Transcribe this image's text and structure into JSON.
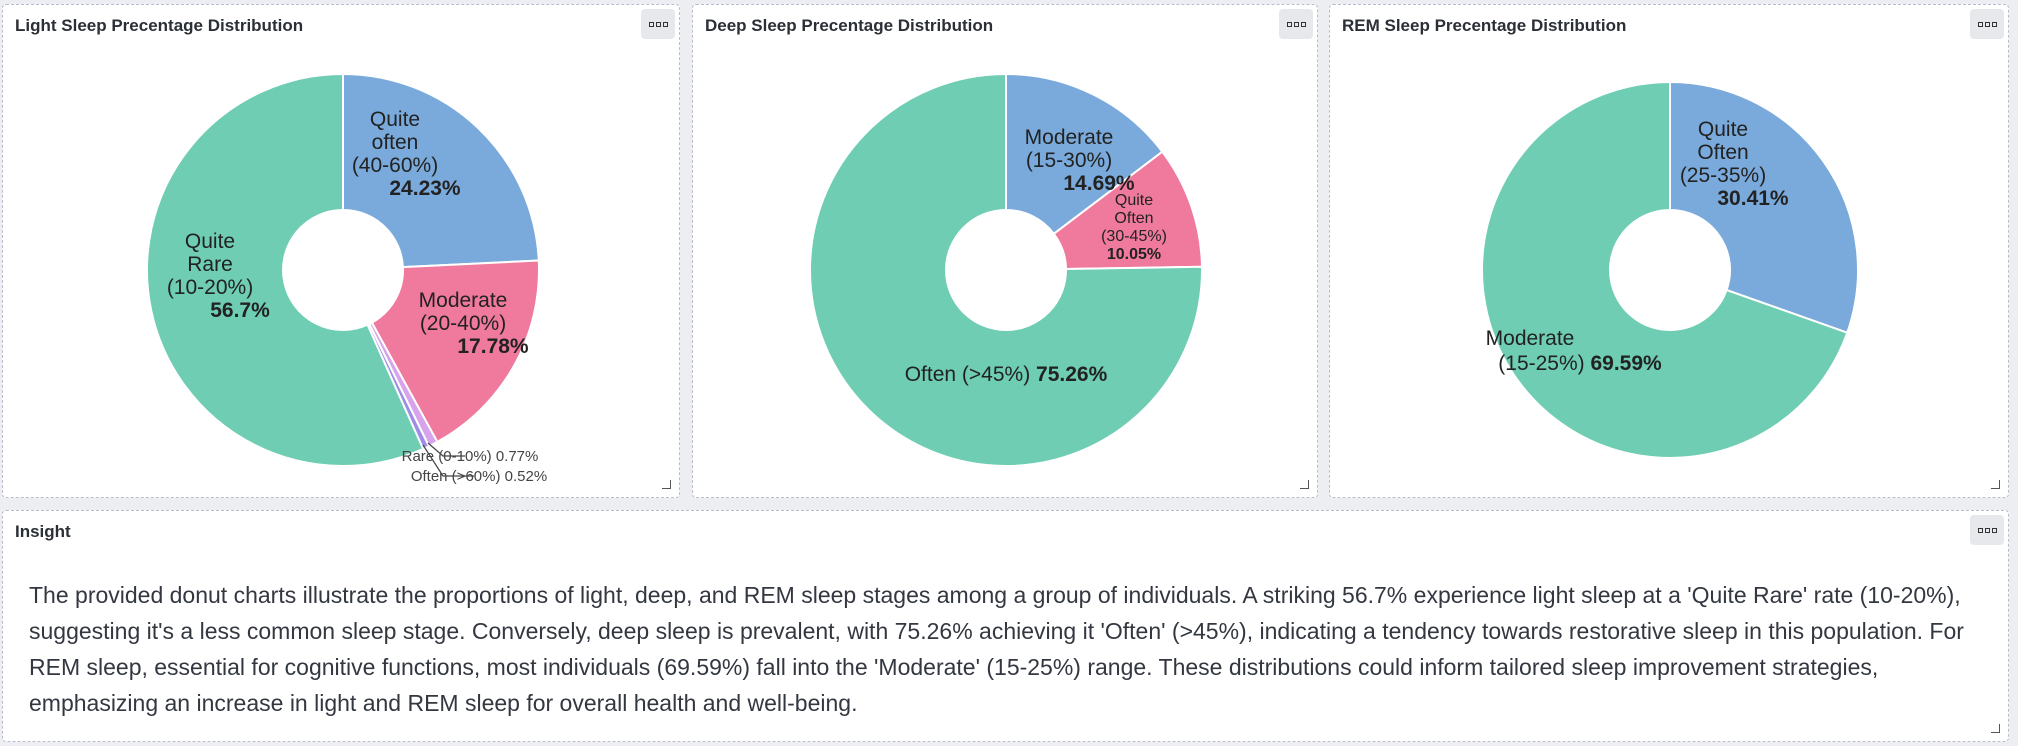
{
  "panels": [
    {
      "title": "Light Sleep Precentage Distribution"
    },
    {
      "title": "Deep Sleep Precentage Distribution"
    },
    {
      "title": "REM Sleep Precentage Distribution"
    }
  ],
  "insight": {
    "title": "Insight",
    "text": "The provided donut charts illustrate the proportions of light, deep, and REM sleep stages among a group of individuals. A striking 56.7% experience light sleep at a 'Quite Rare' rate (10-20%), suggesting it's a less common sleep stage. Conversely, deep sleep is prevalent, with 75.26% achieving it 'Often' (>45%), indicating a tendency towards restorative sleep in this population. For REM sleep, essential for cognitive functions, most individuals (69.59%) fall into the 'Moderate' (15-25%) range. These distributions could inform tailored sleep improvement strategies, emphasizing an increase in light and REM sleep for overall health and well-being."
  },
  "icons": {
    "menu": "more-options-icon",
    "resize": "resize-handle-icon"
  },
  "chart_data": [
    {
      "type": "pie",
      "title": "Light Sleep Precentage Distribution",
      "categories": [
        "Quite often (40-60%)",
        "Moderate (20-40%)",
        "Rare (0-10%)",
        "Often (>60%)",
        "Quite Rare (10-20%)"
      ],
      "values": [
        24.23,
        17.78,
        0.77,
        0.52,
        56.7
      ],
      "colors": [
        "#7aaadb",
        "#ef7a9d",
        "#d7a3ec",
        "#9d8de6",
        "#6ecdb2"
      ],
      "labels": [
        {
          "lines": [
            "Quite",
            "often",
            "(40-60%)"
          ],
          "value": "24.23%"
        },
        {
          "lines": [
            "Moderate",
            "(20-40%)"
          ],
          "value": "17.78%"
        },
        {
          "lines": [
            "Rare (0-10%)"
          ],
          "value": "0.77%"
        },
        {
          "lines": [
            "Often (>60%)"
          ],
          "value": "0.52%"
        },
        {
          "lines": [
            "Quite",
            "Rare",
            "(10-20%)"
          ],
          "value": "56.7%"
        }
      ]
    },
    {
      "type": "pie",
      "title": "Deep Sleep Precentage Distribution",
      "categories": [
        "Moderate (15-30%)",
        "Quite Often (30-45%)",
        "Often (>45%)"
      ],
      "values": [
        14.69,
        10.05,
        75.26
      ],
      "colors": [
        "#7aaadb",
        "#ef7a9d",
        "#6ecdb2"
      ],
      "labels": [
        {
          "lines": [
            "Moderate",
            "(15-30%)"
          ],
          "value": "14.69%"
        },
        {
          "lines": [
            "Quite",
            "Often",
            "(30-45%)"
          ],
          "value": "10.05%"
        },
        {
          "lines": [
            "Often (>45%)"
          ],
          "value": "75.26%"
        }
      ]
    },
    {
      "type": "pie",
      "title": "REM Sleep Precentage Distribution",
      "categories": [
        "Quite Often (25-35%)",
        "Moderate (15-25%)"
      ],
      "values": [
        30.41,
        69.59
      ],
      "colors": [
        "#7aaadb",
        "#6ecdb2"
      ],
      "labels": [
        {
          "lines": [
            "Quite",
            "Often",
            "(25-35%)"
          ],
          "value": "30.41%"
        },
        {
          "lines": [
            "Moderate",
            "(15-25%)"
          ],
          "value": "69.59%"
        }
      ]
    }
  ]
}
